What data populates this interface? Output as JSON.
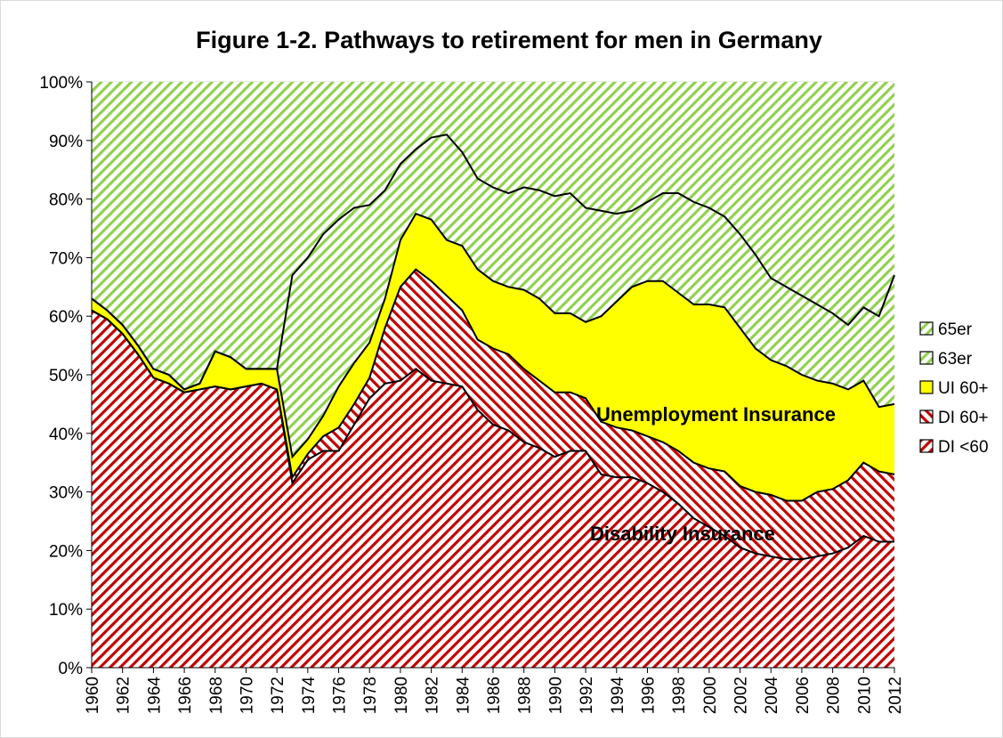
{
  "chart_data": {
    "type": "stacked-area",
    "title": "Figure 1-2.  Pathways to retirement for men in Germany",
    "x": [
      1960,
      1961,
      1962,
      1963,
      1964,
      1965,
      1966,
      1967,
      1968,
      1969,
      1970,
      1971,
      1972,
      1973,
      1974,
      1975,
      1976,
      1977,
      1978,
      1979,
      1980,
      1981,
      1982,
      1983,
      1984,
      1985,
      1986,
      1987,
      1988,
      1989,
      1990,
      1991,
      1992,
      1993,
      1994,
      1995,
      1996,
      1997,
      1998,
      1999,
      2000,
      2001,
      2002,
      2003,
      2004,
      2005,
      2006,
      2007,
      2008,
      2009,
      2010,
      2011,
      2012
    ],
    "xlim": [
      1960,
      2012
    ],
    "xticks": [
      1960,
      1962,
      1964,
      1966,
      1968,
      1970,
      1972,
      1974,
      1976,
      1978,
      1980,
      1982,
      1984,
      1986,
      1988,
      1990,
      1992,
      1994,
      1996,
      1998,
      2000,
      2002,
      2004,
      2006,
      2008,
      2010,
      2012
    ],
    "ylim": [
      0,
      100
    ],
    "yticks": [
      {
        "value": 0,
        "label": "0%"
      },
      {
        "value": 10,
        "label": "10%"
      },
      {
        "value": 20,
        "label": "20%"
      },
      {
        "value": 30,
        "label": "30%"
      },
      {
        "value": 40,
        "label": "40%"
      },
      {
        "value": 50,
        "label": "50%"
      },
      {
        "value": 60,
        "label": "60%"
      },
      {
        "value": 70,
        "label": "70%"
      },
      {
        "value": 80,
        "label": "80%"
      },
      {
        "value": 90,
        "label": "90%"
      },
      {
        "value": 100,
        "label": "100%"
      }
    ],
    "legend": "right",
    "series": [
      {
        "name": "DI <60",
        "color": "#c00000",
        "values": [
          61,
          59.5,
          57,
          53.5,
          49.5,
          48.5,
          47,
          47.5,
          48,
          47.5,
          48,
          48.5,
          47.5,
          31.5,
          35.5,
          37,
          37,
          41.5,
          46,
          48.5,
          49,
          51,
          49,
          48.5,
          48,
          44,
          41.5,
          40.5,
          38.5,
          37.5,
          36,
          37,
          37,
          33,
          32.5,
          32.5,
          31.5,
          30,
          28,
          25.5,
          24,
          22.5,
          20.5,
          19.5,
          19,
          18.5,
          18.5,
          19,
          19.5,
          20.5,
          22.5,
          21.5,
          21.5
        ]
      },
      {
        "name": "DI 60+",
        "color": "#c00000",
        "values": [
          0,
          0,
          0,
          0,
          0,
          0,
          0,
          0,
          0,
          0,
          0,
          0,
          0,
          1,
          1,
          2.5,
          4,
          3.5,
          3.5,
          9.5,
          16,
          17,
          17,
          15,
          13,
          12,
          13,
          13,
          12.5,
          11.5,
          11,
          10,
          9,
          9,
          8.5,
          8,
          8,
          8.5,
          9,
          9.5,
          10,
          11,
          10.5,
          10.5,
          10.5,
          10,
          10,
          11,
          11,
          11.5,
          12.5,
          12,
          11.5
        ]
      },
      {
        "name": "UI 60+",
        "color": "#ffff00",
        "values": [
          2,
          1.5,
          1.5,
          1.5,
          1.5,
          1.5,
          0.5,
          1,
          6,
          5.5,
          3,
          2.5,
          3.5,
          3.5,
          2.5,
          3.5,
          7,
          7,
          6,
          5,
          8,
          9.5,
          10.5,
          9.5,
          11,
          12,
          11.5,
          11.5,
          13.5,
          14,
          13.5,
          13.5,
          13,
          18,
          21.5,
          24.5,
          26.5,
          27.5,
          27,
          27,
          28,
          28,
          27,
          24.5,
          23,
          23,
          21.5,
          19,
          18,
          15.5,
          14,
          11,
          12
        ]
      },
      {
        "name": "63er",
        "color": "#92d050",
        "values": [
          0,
          0,
          0,
          0,
          0,
          0,
          0,
          0,
          0,
          0,
          0,
          0,
          0,
          31,
          31,
          31,
          28.5,
          26.5,
          23.5,
          18.5,
          13,
          11,
          14,
          18,
          16,
          15.5,
          16,
          16,
          17.5,
          18.5,
          20,
          20.5,
          19.5,
          18,
          15,
          13,
          13.5,
          15,
          17,
          17.5,
          16.5,
          15.5,
          16,
          16,
          14,
          13.5,
          13.5,
          13,
          12,
          11,
          12.5,
          15.5,
          22
        ]
      },
      {
        "name": "65er",
        "color": "#92d050",
        "values": [
          37,
          39,
          41.5,
          45,
          49,
          50,
          52.5,
          51.5,
          46,
          47,
          49,
          49,
          49,
          33,
          30,
          26,
          23.5,
          21.5,
          21,
          18.5,
          14,
          11.5,
          9.5,
          9,
          12,
          16.5,
          18,
          19,
          18,
          18.5,
          19.5,
          19,
          21.5,
          22,
          22.5,
          22,
          20.5,
          19,
          19,
          20.5,
          21.5,
          23,
          26,
          29.5,
          33.5,
          35,
          36.5,
          38,
          39.5,
          41.5,
          38.5,
          40,
          33
        ]
      }
    ],
    "annotations": [
      "Unemployment Insurance",
      "Disability Insurance"
    ]
  }
}
